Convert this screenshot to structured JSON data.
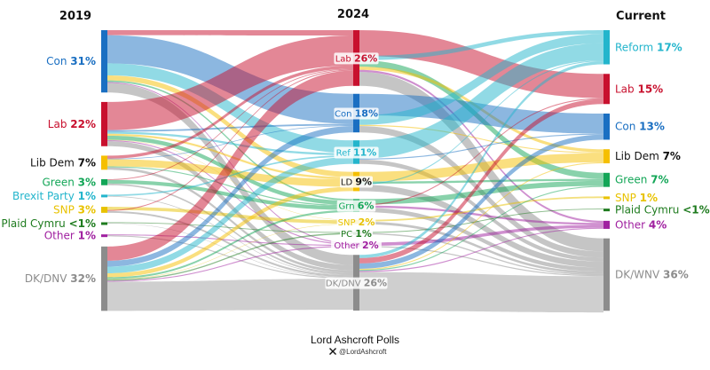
{
  "columns": [
    "2019",
    "2024",
    "Current"
  ],
  "chart_data": {
    "type": "sankey",
    "stages": [
      "2019",
      "2024",
      "Current"
    ],
    "nodes": {
      "2019": [
        {
          "id": "con19",
          "label": "Con",
          "value": "31%",
          "pct": 31,
          "color": "#1a6fc2"
        },
        {
          "id": "lab19",
          "label": "Lab",
          "value": "22%",
          "pct": 22,
          "color": "#c8102e"
        },
        {
          "id": "ld19",
          "label": "Lib Dem",
          "value": "7%",
          "pct": 7,
          "color": "#f5bf00",
          "text_color": "#111111"
        },
        {
          "id": "grn19",
          "label": "Green",
          "value": "3%",
          "pct": 3,
          "color": "#13a657"
        },
        {
          "id": "brx19",
          "label": "Brexit Party",
          "value": "1%",
          "pct": 1,
          "color": "#23b5cc"
        },
        {
          "id": "snp19",
          "label": "SNP",
          "value": "3%",
          "pct": 3,
          "color": "#e8c200"
        },
        {
          "id": "pc19",
          "label": "Plaid Cymru",
          "value": "<1%",
          "pct": 0.6,
          "color": "#1e7b1e"
        },
        {
          "id": "oth19",
          "label": "Other",
          "value": "1%",
          "pct": 1,
          "color": "#a020a0"
        },
        {
          "id": "dk19",
          "label": "DK/DNV",
          "value": "32%",
          "pct": 32,
          "color": "#8c8c8c"
        }
      ],
      "2024": [
        {
          "id": "lab24",
          "label": "Lab",
          "value": "26%",
          "pct": 26,
          "color": "#c8102e"
        },
        {
          "id": "con24",
          "label": "Con",
          "value": "18%",
          "pct": 18,
          "color": "#1a6fc2"
        },
        {
          "id": "ref24",
          "label": "Ref",
          "value": "11%",
          "pct": 11,
          "color": "#23b5cc"
        },
        {
          "id": "ld24",
          "label": "LD",
          "value": "9%",
          "pct": 9,
          "color": "#f5bf00",
          "text_color": "#111111"
        },
        {
          "id": "grn24",
          "label": "Grn",
          "value": "6%",
          "pct": 6,
          "color": "#13a657"
        },
        {
          "id": "snp24",
          "label": "SNP",
          "value": "2%",
          "pct": 2,
          "color": "#e8c200"
        },
        {
          "id": "pc24",
          "label": "PC",
          "value": "1%",
          "pct": 1,
          "color": "#1e7b1e"
        },
        {
          "id": "oth24",
          "label": "Other",
          "value": "2%",
          "pct": 2,
          "color": "#a020a0"
        },
        {
          "id": "dk24",
          "label": "DK/DNV",
          "value": "26%",
          "pct": 26,
          "color": "#8c8c8c"
        }
      ],
      "Current": [
        {
          "id": "ref_c",
          "label": "Reform",
          "value": "17%",
          "pct": 17,
          "color": "#23b5cc"
        },
        {
          "id": "lab_c",
          "label": "Lab",
          "value": "15%",
          "pct": 15,
          "color": "#c8102e"
        },
        {
          "id": "con_c",
          "label": "Con",
          "value": "13%",
          "pct": 13,
          "color": "#1a6fc2"
        },
        {
          "id": "ld_c",
          "label": "Lib Dem",
          "value": "7%",
          "pct": 7,
          "color": "#f5bf00",
          "text_color": "#111111"
        },
        {
          "id": "grn_c",
          "label": "Green",
          "value": "7%",
          "pct": 7,
          "color": "#13a657"
        },
        {
          "id": "snp_c",
          "label": "SNP",
          "value": "1%",
          "pct": 1,
          "color": "#e8c200"
        },
        {
          "id": "pc_c",
          "label": "Plaid Cymru",
          "value": "<1%",
          "pct": 0.6,
          "color": "#1e7b1e"
        },
        {
          "id": "oth_c",
          "label": "Other",
          "value": "4%",
          "pct": 4,
          "color": "#a020a0"
        },
        {
          "id": "dk_c",
          "label": "DK/WNV",
          "value": "36%",
          "pct": 36,
          "color": "#8c8c8c"
        }
      ]
    },
    "flows_2019_2024": [
      [
        "con19",
        "lab24",
        2.5
      ],
      [
        "con19",
        "con24",
        14
      ],
      [
        "con19",
        "ref24",
        6
      ],
      [
        "con19",
        "ld24",
        2.5
      ],
      [
        "con19",
        "grn24",
        0.8
      ],
      [
        "con19",
        "oth24",
        0.5
      ],
      [
        "con19",
        "dk24",
        4.7
      ],
      [
        "lab19",
        "lab24",
        14
      ],
      [
        "lab19",
        "con24",
        0.8
      ],
      [
        "lab19",
        "ref24",
        1
      ],
      [
        "lab19",
        "ld24",
        1
      ],
      [
        "lab19",
        "grn24",
        2
      ],
      [
        "lab19",
        "snp24",
        0.2
      ],
      [
        "lab19",
        "oth24",
        0.5
      ],
      [
        "lab19",
        "dk24",
        2.5
      ],
      [
        "ld19",
        "lab24",
        1.5
      ],
      [
        "ld19",
        "con24",
        0.3
      ],
      [
        "ld19",
        "ld24",
        3.5
      ],
      [
        "ld19",
        "grn24",
        0.5
      ],
      [
        "ld19",
        "dk24",
        1.2
      ],
      [
        "grn19",
        "lab24",
        0.4
      ],
      [
        "grn19",
        "grn24",
        1.8
      ],
      [
        "grn19",
        "dk24",
        0.8
      ],
      [
        "brx19",
        "ref24",
        0.7
      ],
      [
        "brx19",
        "dk24",
        0.3
      ],
      [
        "snp19",
        "snp24",
        1.6
      ],
      [
        "snp19",
        "lab24",
        0.5
      ],
      [
        "snp19",
        "dk24",
        0.9
      ],
      [
        "pc19",
        "pc24",
        0.4
      ],
      [
        "pc19",
        "dk24",
        0.2
      ],
      [
        "oth19",
        "oth24",
        0.5
      ],
      [
        "oth19",
        "dk24",
        0.5
      ],
      [
        "dk19",
        "lab24",
        7.1
      ],
      [
        "dk19",
        "con24",
        2.9
      ],
      [
        "dk19",
        "ref24",
        3.3
      ],
      [
        "dk19",
        "ld24",
        2
      ],
      [
        "dk19",
        "grn24",
        0.9
      ],
      [
        "dk19",
        "snp24",
        0.2
      ],
      [
        "dk19",
        "pc24",
        0.6
      ],
      [
        "dk19",
        "oth24",
        0.5
      ],
      [
        "dk19",
        "dk24",
        14.5
      ]
    ],
    "flows_2024_current": [
      [
        "lab24",
        "lab_c",
        12
      ],
      [
        "lab24",
        "ref_c",
        2
      ],
      [
        "lab24",
        "grn_c",
        3
      ],
      [
        "lab24",
        "ld_c",
        1.5
      ],
      [
        "lab24",
        "oth_c",
        1
      ],
      [
        "lab24",
        "dk_c",
        6.5
      ],
      [
        "con24",
        "con_c",
        10
      ],
      [
        "con24",
        "ref_c",
        4.5
      ],
      [
        "con24",
        "ld_c",
        0.5
      ],
      [
        "con24",
        "dk_c",
        3
      ],
      [
        "ref24",
        "ref_c",
        8.5
      ],
      [
        "ref24",
        "con_c",
        0.5
      ],
      [
        "ref24",
        "dk_c",
        2
      ],
      [
        "ld24",
        "ld_c",
        4.5
      ],
      [
        "ld24",
        "grn_c",
        1
      ],
      [
        "ld24",
        "ref_c",
        0.5
      ],
      [
        "ld24",
        "dk_c",
        3
      ],
      [
        "grn24",
        "grn_c",
        2.5
      ],
      [
        "grn24",
        "lab_c",
        0.5
      ],
      [
        "grn24",
        "oth_c",
        1
      ],
      [
        "grn24",
        "dk_c",
        2
      ],
      [
        "snp24",
        "snp_c",
        0.8
      ],
      [
        "snp24",
        "dk_c",
        1.2
      ],
      [
        "pc24",
        "pc_c",
        0.4
      ],
      [
        "pc24",
        "dk_c",
        0.6
      ],
      [
        "oth24",
        "oth_c",
        1.5
      ],
      [
        "oth24",
        "dk_c",
        0.5
      ],
      [
        "dk24",
        "ref_c",
        1.5
      ],
      [
        "dk24",
        "lab_c",
        2.5
      ],
      [
        "dk24",
        "con_c",
        2.5
      ],
      [
        "dk24",
        "ld_c",
        0.5
      ],
      [
        "dk24",
        "grn_c",
        0.5
      ],
      [
        "dk24",
        "oth_c",
        0.5
      ],
      [
        "dk24",
        "dk_c",
        18
      ]
    ]
  },
  "footer": {
    "title": "Lord Ashcroft Polls",
    "handle": "@LordAshcroft",
    "logo_icon": "x-logo-icon"
  }
}
